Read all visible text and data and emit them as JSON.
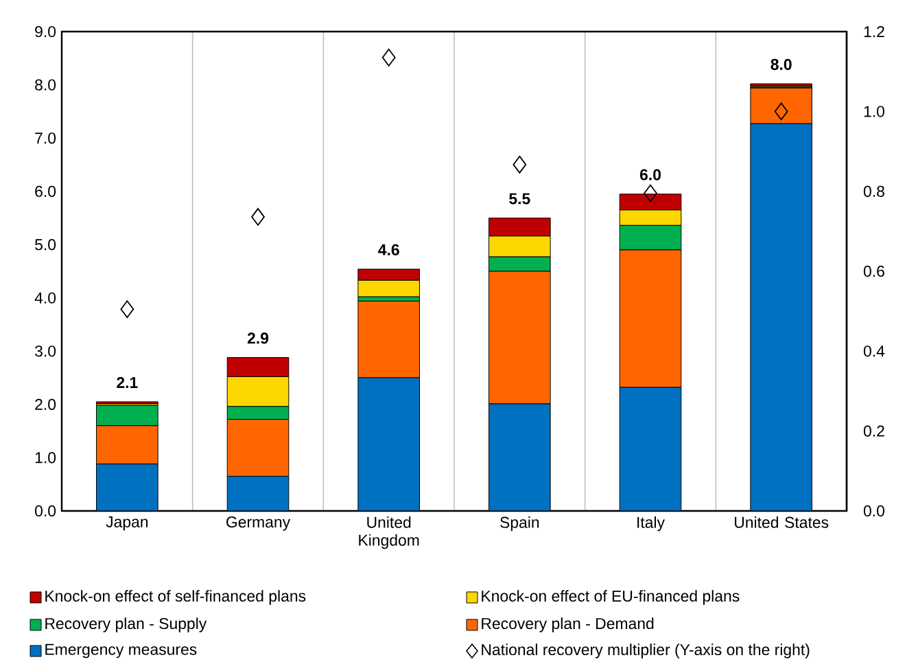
{
  "chart_data": {
    "type": "bar",
    "stacked": true,
    "categories": [
      "Japan",
      "Germany",
      "United Kingdom",
      "Spain",
      "Italy",
      "United States"
    ],
    "series": [
      {
        "name": "Emergency measures",
        "color": "#0070c0",
        "values": [
          0.88,
          0.65,
          2.5,
          2.01,
          2.32,
          7.27
        ]
      },
      {
        "name": "Recovery plan - Demand",
        "color": "#ff6600",
        "values": [
          0.72,
          1.07,
          1.44,
          2.49,
          2.58,
          0.67
        ]
      },
      {
        "name": "Recovery plan - Supply",
        "color": "#00b050",
        "values": [
          0.38,
          0.24,
          0.08,
          0.27,
          0.46,
          0.02
        ]
      },
      {
        "name": "Knock-on effect of EU-financed plans",
        "color": "#ffd700",
        "values": [
          0.03,
          0.56,
          0.31,
          0.39,
          0.29,
          0.02
        ]
      },
      {
        "name": "Knock-on effect of self-financed plans",
        "color": "#c00000",
        "values": [
          0.04,
          0.36,
          0.21,
          0.34,
          0.3,
          0.04
        ]
      },
      {
        "name": "National recovery multiplier (Y-axis on the right)",
        "type": "scatter",
        "axis": "y2",
        "marker": "diamond",
        "color": "#000000",
        "x": [
          "Japan",
          "Germany",
          "United Kingdom",
          "Spain",
          "Italy",
          "United States"
        ],
        "values": [
          0.505,
          0.736,
          1.135,
          0.867,
          0.795,
          1.0
        ]
      }
    ],
    "totals": [
      "2.1",
      "2.9",
      "4.6",
      "5.5",
      "6.0",
      "8.0"
    ],
    "ylim": [
      0,
      9
    ],
    "yticks": [
      {
        "value": 0,
        "label": "0.0"
      },
      {
        "value": 1,
        "label": "1.0"
      },
      {
        "value": 2,
        "label": "2.0"
      },
      {
        "value": 3,
        "label": "3.0"
      },
      {
        "value": 4,
        "label": "4.0"
      },
      {
        "value": 5,
        "label": "5.0"
      },
      {
        "value": 6,
        "label": "6.0"
      },
      {
        "value": 7,
        "label": "7.0"
      },
      {
        "value": 8,
        "label": "8.0"
      },
      {
        "value": 9,
        "label": "9.0"
      }
    ],
    "y2lim": [
      0,
      1.2
    ],
    "y2ticks": [
      {
        "value": 0,
        "label": "0.0"
      },
      {
        "value": 0.2,
        "label": "0.2"
      },
      {
        "value": 0.4,
        "label": "0.4"
      },
      {
        "value": 0.6,
        "label": "0.6"
      },
      {
        "value": 0.8,
        "label": "0.8"
      },
      {
        "value": 1.0,
        "label": "1.0"
      },
      {
        "value": 1.2,
        "label": "1.2"
      }
    ],
    "grid": "x",
    "legend": "bottom"
  }
}
